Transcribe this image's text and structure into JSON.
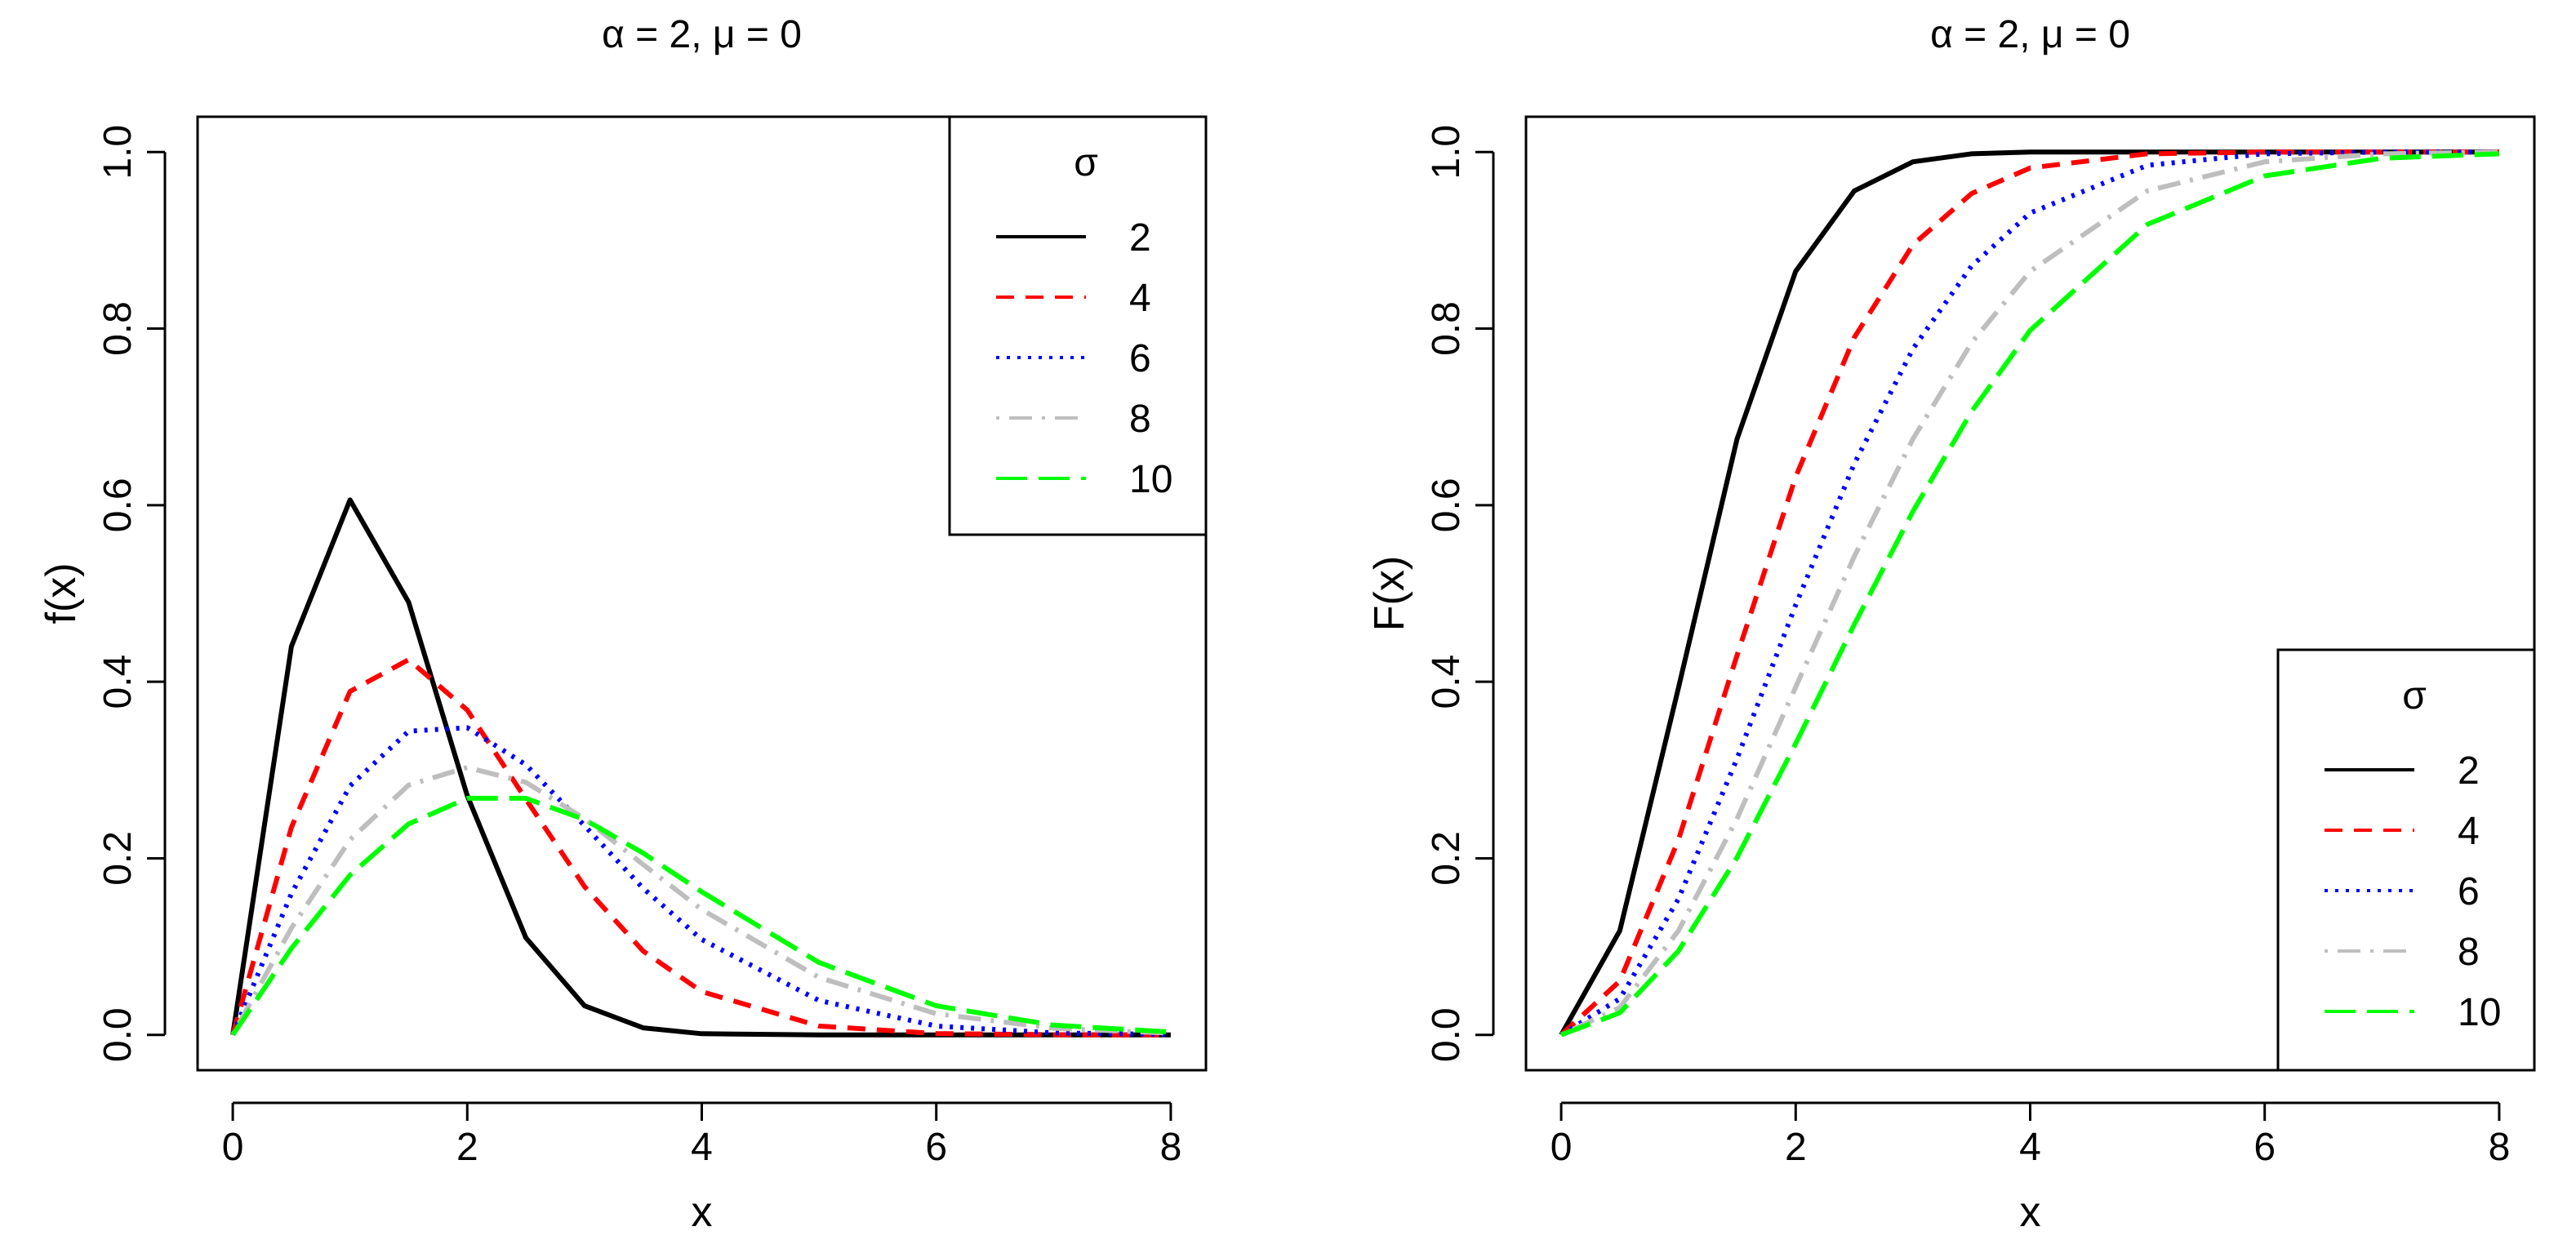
{
  "chart_data": [
    {
      "type": "line",
      "title": "α = 2, μ = 0",
      "xlabel": "x",
      "ylabel": "f(x)",
      "xlim": [
        -0.3,
        8.3
      ],
      "ylim": [
        -0.04,
        1.04
      ],
      "xticks": [
        0,
        2,
        4,
        6,
        8
      ],
      "xtick_labels": [
        "0",
        "2",
        "4",
        "6",
        "8"
      ],
      "yticks": [
        0.0,
        0.2,
        0.4,
        0.6,
        0.8,
        1.0
      ],
      "ytick_labels": [
        "0.0",
        "0.2",
        "0.4",
        "0.6",
        "0.8",
        "1.0"
      ],
      "legend": {
        "title": "σ",
        "position": "top-right",
        "entries": [
          "2",
          "4",
          "6",
          "8",
          "10"
        ]
      },
      "x": [
        0,
        0.5,
        1,
        1.5,
        2,
        2.5,
        3,
        3.5,
        4,
        5,
        6,
        7,
        8
      ],
      "series": [
        {
          "name": "2",
          "color": "#000000",
          "style": "solid",
          "values": [
            0.0,
            0.44,
            0.606,
            0.49,
            0.271,
            0.11,
            0.033,
            0.008,
            0.0013,
            2e-05,
            0.0,
            0.0,
            0.0
          ]
        },
        {
          "name": "4",
          "color": "#ff0000",
          "style": "dashed",
          "values": [
            0.0,
            0.235,
            0.389,
            0.425,
            0.368,
            0.267,
            0.168,
            0.095,
            0.049,
            0.01,
            0.0015,
            0.0002,
            0.0
          ]
        },
        {
          "name": "6",
          "color": "#0000ff",
          "style": "dotted",
          "values": [
            0.0,
            0.16,
            0.282,
            0.344,
            0.348,
            0.306,
            0.237,
            0.166,
            0.108,
            0.039,
            0.01,
            0.0023,
            0.0004
          ]
        },
        {
          "name": "8",
          "color": "#bebebe",
          "style": "dotdash",
          "values": [
            0.0,
            0.121,
            0.221,
            0.283,
            0.303,
            0.286,
            0.245,
            0.193,
            0.142,
            0.065,
            0.024,
            0.0075,
            0.0019
          ]
        },
        {
          "name": "10",
          "color": "#00ff00",
          "style": "longdash",
          "values": [
            0.0,
            0.098,
            0.181,
            0.239,
            0.268,
            0.268,
            0.244,
            0.206,
            0.162,
            0.082,
            0.033,
            0.011,
            0.0033
          ]
        }
      ]
    },
    {
      "type": "line",
      "title": "α = 2, μ = 0",
      "xlabel": "x",
      "ylabel": "F(x)",
      "xlim": [
        -0.3,
        8.3
      ],
      "ylim": [
        -0.04,
        1.04
      ],
      "xticks": [
        0,
        2,
        4,
        6,
        8
      ],
      "xtick_labels": [
        "0",
        "2",
        "4",
        "6",
        "8"
      ],
      "yticks": [
        0.0,
        0.2,
        0.4,
        0.6,
        0.8,
        1.0
      ],
      "ytick_labels": [
        "0.0",
        "0.2",
        "0.4",
        "0.6",
        "0.8",
        "1.0"
      ],
      "legend": {
        "title": "σ",
        "position": "bottom-right",
        "entries": [
          "2",
          "4",
          "6",
          "8",
          "10"
        ]
      },
      "x": [
        0,
        0.5,
        1,
        1.5,
        2,
        2.5,
        3,
        3.5,
        4,
        5,
        6,
        7,
        8
      ],
      "series": [
        {
          "name": "2",
          "color": "#000000",
          "style": "solid",
          "values": [
            0.0,
            0.118,
            0.393,
            0.675,
            0.865,
            0.956,
            0.989,
            0.998,
            1.0,
            1.0,
            1.0,
            1.0,
            1.0
          ]
        },
        {
          "name": "4",
          "color": "#ff0000",
          "style": "dashed",
          "values": [
            0.0,
            0.061,
            0.221,
            0.43,
            0.632,
            0.79,
            0.895,
            0.953,
            0.982,
            0.998,
            1.0,
            1.0,
            1.0
          ]
        },
        {
          "name": "6",
          "color": "#0000ff",
          "style": "dotted",
          "values": [
            0.0,
            0.041,
            0.154,
            0.313,
            0.487,
            0.647,
            0.777,
            0.871,
            0.931,
            0.985,
            0.998,
            1.0,
            1.0
          ]
        },
        {
          "name": "8",
          "color": "#bebebe",
          "style": "dotdash",
          "values": [
            0.0,
            0.031,
            0.118,
            0.245,
            0.394,
            0.542,
            0.675,
            0.784,
            0.865,
            0.956,
            0.989,
            0.998,
            1.0
          ]
        },
        {
          "name": "10",
          "color": "#00ff00",
          "style": "longdash",
          "values": [
            0.0,
            0.025,
            0.095,
            0.201,
            0.33,
            0.465,
            0.593,
            0.706,
            0.798,
            0.918,
            0.973,
            0.993,
            0.998
          ]
        }
      ]
    }
  ]
}
